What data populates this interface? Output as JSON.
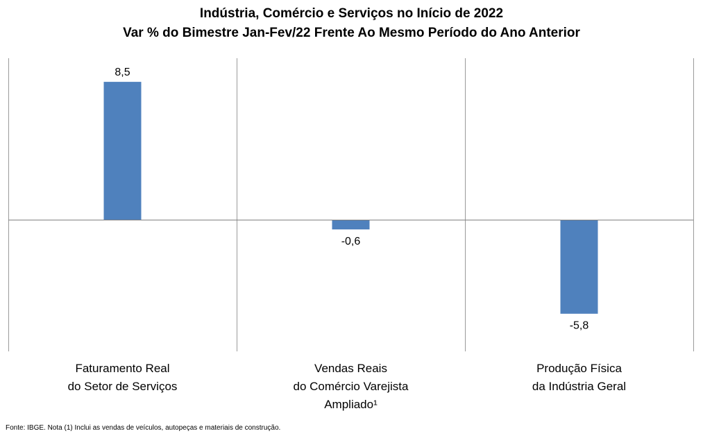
{
  "chart_data": {
    "type": "bar",
    "title": "Indústria, Comércio e Serviços no Início de 2022",
    "subtitle": "Var % do Bimestre Jan-Fev/22 Frente Ao Mesmo Período do Ano Anterior",
    "categories": [
      [
        "Faturamento Real",
        "do Setor de Serviços"
      ],
      [
        "Vendas Reais",
        "do Comércio Varejista",
        "Ampliado¹"
      ],
      [
        "Produção Física",
        "da Indústria Geral"
      ]
    ],
    "values": [
      8.5,
      -0.6,
      -5.8
    ],
    "data_labels": [
      "8,5",
      "-0,6",
      "-5,8"
    ],
    "ylim": [
      -8,
      10
    ],
    "grid": "vertical category separators",
    "legend": "none",
    "bar_color": "#4f81bd"
  },
  "footnote": "Fonte: IBGE. Nota (1) Inclui as vendas de veículos, autopeças e materiais de construção."
}
